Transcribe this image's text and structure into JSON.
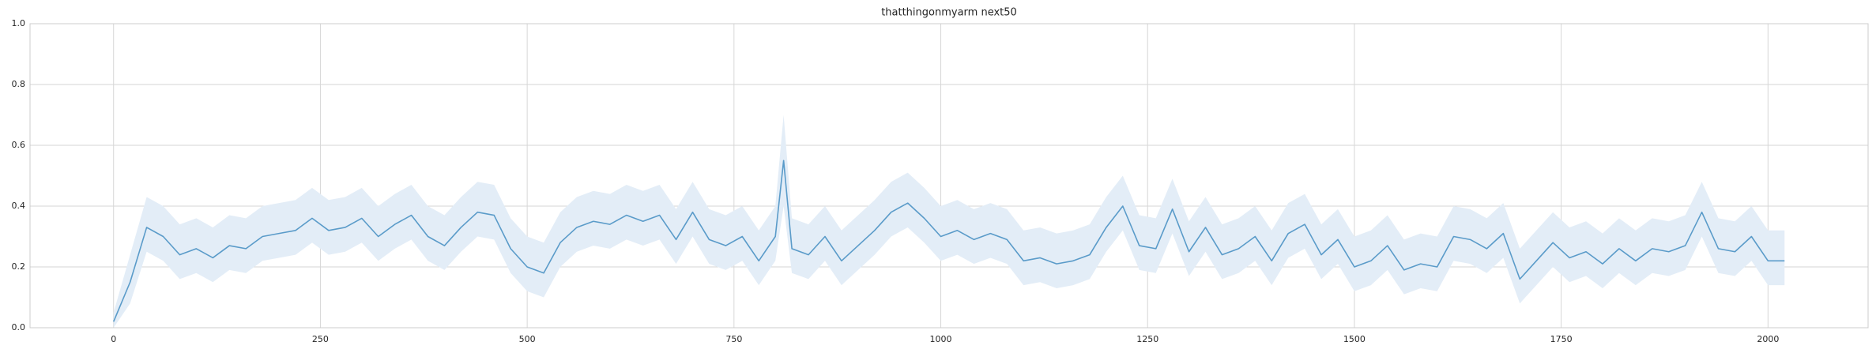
{
  "chart_data": {
    "type": "line",
    "title": "thatthingonmyarm next50",
    "x": [
      0,
      20,
      40,
      60,
      80,
      100,
      120,
      140,
      160,
      180,
      200,
      220,
      240,
      260,
      280,
      300,
      320,
      340,
      360,
      380,
      400,
      420,
      440,
      460,
      480,
      500,
      520,
      540,
      560,
      580,
      600,
      620,
      640,
      660,
      680,
      700,
      720,
      740,
      760,
      780,
      800,
      810,
      820,
      840,
      860,
      880,
      900,
      920,
      940,
      960,
      980,
      1000,
      1020,
      1040,
      1060,
      1080,
      1100,
      1120,
      1140,
      1160,
      1180,
      1200,
      1220,
      1240,
      1260,
      1280,
      1300,
      1320,
      1340,
      1360,
      1380,
      1400,
      1420,
      1440,
      1460,
      1480,
      1500,
      1520,
      1540,
      1560,
      1580,
      1600,
      1620,
      1640,
      1660,
      1680,
      1700,
      1720,
      1740,
      1760,
      1780,
      1800,
      1820,
      1840,
      1860,
      1880,
      1900,
      1920,
      1940,
      1960,
      1980,
      2000,
      2020
    ],
    "values": [
      0.02,
      0.15,
      0.33,
      0.3,
      0.24,
      0.26,
      0.23,
      0.27,
      0.26,
      0.3,
      0.31,
      0.32,
      0.36,
      0.32,
      0.33,
      0.36,
      0.3,
      0.34,
      0.37,
      0.3,
      0.27,
      0.33,
      0.38,
      0.37,
      0.26,
      0.2,
      0.18,
      0.28,
      0.33,
      0.35,
      0.34,
      0.37,
      0.35,
      0.37,
      0.29,
      0.38,
      0.29,
      0.27,
      0.3,
      0.22,
      0.3,
      0.55,
      0.26,
      0.24,
      0.3,
      0.22,
      0.27,
      0.32,
      0.38,
      0.41,
      0.36,
      0.3,
      0.32,
      0.29,
      0.31,
      0.29,
      0.22,
      0.23,
      0.21,
      0.22,
      0.24,
      0.33,
      0.4,
      0.27,
      0.26,
      0.39,
      0.25,
      0.33,
      0.24,
      0.26,
      0.3,
      0.22,
      0.31,
      0.34,
      0.24,
      0.29,
      0.2,
      0.22,
      0.27,
      0.19,
      0.21,
      0.2,
      0.3,
      0.29,
      0.26,
      0.31,
      0.16,
      0.22,
      0.28,
      0.23,
      0.25,
      0.21,
      0.26,
      0.22,
      0.26,
      0.25,
      0.27,
      0.38,
      0.26,
      0.25,
      0.3,
      0.22,
      0.22
    ],
    "band": {
      "lower": [
        0.0,
        0.08,
        0.25,
        0.22,
        0.16,
        0.18,
        0.15,
        0.19,
        0.18,
        0.22,
        0.23,
        0.24,
        0.28,
        0.24,
        0.25,
        0.28,
        0.22,
        0.26,
        0.29,
        0.22,
        0.19,
        0.25,
        0.3,
        0.29,
        0.18,
        0.12,
        0.1,
        0.2,
        0.25,
        0.27,
        0.26,
        0.29,
        0.27,
        0.29,
        0.21,
        0.3,
        0.21,
        0.19,
        0.22,
        0.14,
        0.22,
        0.4,
        0.18,
        0.16,
        0.22,
        0.14,
        0.19,
        0.24,
        0.3,
        0.33,
        0.28,
        0.22,
        0.24,
        0.21,
        0.23,
        0.21,
        0.14,
        0.15,
        0.13,
        0.14,
        0.16,
        0.25,
        0.32,
        0.19,
        0.18,
        0.31,
        0.17,
        0.25,
        0.16,
        0.18,
        0.22,
        0.14,
        0.23,
        0.26,
        0.16,
        0.21,
        0.12,
        0.14,
        0.19,
        0.11,
        0.13,
        0.12,
        0.22,
        0.21,
        0.18,
        0.23,
        0.08,
        0.14,
        0.2,
        0.15,
        0.17,
        0.13,
        0.18,
        0.14,
        0.18,
        0.17,
        0.19,
        0.3,
        0.18,
        0.17,
        0.22,
        0.14,
        0.14
      ],
      "upper": [
        0.05,
        0.24,
        0.43,
        0.4,
        0.34,
        0.36,
        0.33,
        0.37,
        0.36,
        0.4,
        0.41,
        0.42,
        0.46,
        0.42,
        0.43,
        0.46,
        0.4,
        0.44,
        0.47,
        0.4,
        0.37,
        0.43,
        0.48,
        0.47,
        0.36,
        0.3,
        0.28,
        0.38,
        0.43,
        0.45,
        0.44,
        0.47,
        0.45,
        0.47,
        0.39,
        0.48,
        0.39,
        0.37,
        0.4,
        0.32,
        0.4,
        0.7,
        0.36,
        0.34,
        0.4,
        0.32,
        0.37,
        0.42,
        0.48,
        0.51,
        0.46,
        0.4,
        0.42,
        0.39,
        0.41,
        0.39,
        0.32,
        0.33,
        0.31,
        0.32,
        0.34,
        0.43,
        0.5,
        0.37,
        0.36,
        0.49,
        0.35,
        0.43,
        0.34,
        0.36,
        0.4,
        0.32,
        0.41,
        0.44,
        0.34,
        0.39,
        0.3,
        0.32,
        0.37,
        0.29,
        0.31,
        0.3,
        0.4,
        0.39,
        0.36,
        0.41,
        0.26,
        0.32,
        0.38,
        0.33,
        0.35,
        0.31,
        0.36,
        0.32,
        0.36,
        0.35,
        0.37,
        0.48,
        0.36,
        0.35,
        0.4,
        0.32,
        0.32
      ],
      "color": "#e3edf7"
    },
    "color": "#5a9bc9",
    "xlim": [
      -101,
      2121
    ],
    "ylim": [
      0,
      1
    ],
    "xticks": [
      0,
      250,
      500,
      750,
      1000,
      1250,
      1500,
      1750,
      2000
    ],
    "yticks": [
      {
        "value": 0,
        "label": "0.0"
      },
      0.2,
      0.4,
      0.6,
      0.8,
      {
        "value": 1,
        "label": "1.0"
      }
    ],
    "grid": true
  }
}
